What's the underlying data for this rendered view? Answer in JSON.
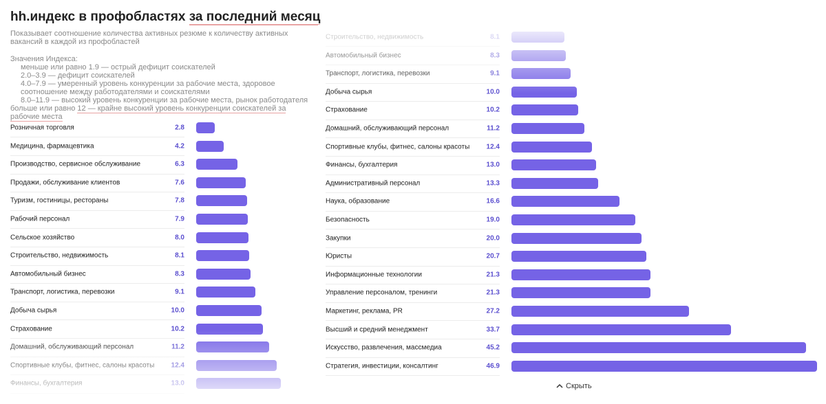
{
  "header": {
    "title": "hh.индекс в профобластях",
    "title_highlight": "за последний месяц",
    "description": "Показывает соотношение количества активных резюме к количеству активных вакансий в каждой из профобластей",
    "legend_title": "Значения Индекса:",
    "legend_items": [
      "меньше или равно 1.9 — острый дефицит соискателей",
      "2.0–3.9 — дефицит соискателей",
      "4.0–7.9 — умеренный уровень конкуренции за рабочие места, здоровое соотношение между работодателями и соискателями",
      "8.0–11.9 — высокий уровень конкуренции за рабочие места, рынок работодателя"
    ],
    "legend_last_prefix": "больше или равно",
    "legend_last_highlight": "12 — крайне высокий уровень конкуренции соискателей за рабочие места"
  },
  "chart_data": [
    {
      "type": "bar",
      "color": "#7563e6",
      "categories": [
        "Розничная торговля",
        "Медицина, фармацевтика",
        "Производство, сервисное обслуживание",
        "Продажи, обслуживание клиентов",
        "Туризм, гостиницы, рестораны",
        "Рабочий персонал",
        "Сельское хозяйство",
        "Строительство, недвижимость",
        "Автомобильный бизнес",
        "Транспорт, логистика, перевозки",
        "Добыча сырья",
        "Страхование",
        "Домашний, обслуживающий персонал",
        "Спортивные клубы, фитнес, салоны красоты",
        "Финансы, бухгалтерия"
      ],
      "values": [
        2.8,
        4.2,
        6.3,
        7.6,
        7.8,
        7.9,
        8.0,
        8.1,
        8.3,
        9.1,
        10.0,
        10.2,
        11.2,
        12.4,
        13.0
      ],
      "value_labels": [
        "2.8",
        "4.2",
        "6.3",
        "7.6",
        "7.8",
        "7.9",
        "8.0",
        "8.1",
        "8.3",
        "9.1",
        "10.0",
        "10.2",
        "11.2",
        "12.4",
        "13.0"
      ]
    },
    {
      "type": "bar",
      "color": "#7563e6",
      "categories": [
        "Строительство, недвижимость",
        "Автомобильный бизнес",
        "Транспорт, логистика, перевозки",
        "Добыча сырья",
        "Страхование",
        "Домашний, обслуживающий персонал",
        "Спортивные клубы, фитнес, салоны красоты",
        "Финансы, бухгалтерия",
        "Административный персонал",
        "Наука, образование",
        "Безопасность",
        "Закупки",
        "Юристы",
        "Информационные технологии",
        "Управление персоналом, тренинги",
        "Маркетинг, реклама, PR",
        "Высший и средний менеджмент",
        "Искусство, развлечения, массмедиа",
        "Стратегия, инвестиции, консалтинг"
      ],
      "values": [
        8.1,
        8.3,
        9.1,
        10.0,
        10.2,
        11.2,
        12.4,
        13.0,
        13.3,
        16.6,
        19.0,
        20.0,
        20.7,
        21.3,
        21.3,
        27.2,
        33.7,
        45.2,
        46.9
      ],
      "value_labels": [
        "8.1",
        "8.3",
        "9.1",
        "10.0",
        "10.2",
        "11.2",
        "12.4",
        "13.0",
        "13.3",
        "16.6",
        "19.0",
        "20.0",
        "20.7",
        "21.3",
        "21.3",
        "27.2",
        "33.7",
        "45.2",
        "46.9"
      ]
    }
  ],
  "footer": {
    "hide": "Скрыть"
  }
}
